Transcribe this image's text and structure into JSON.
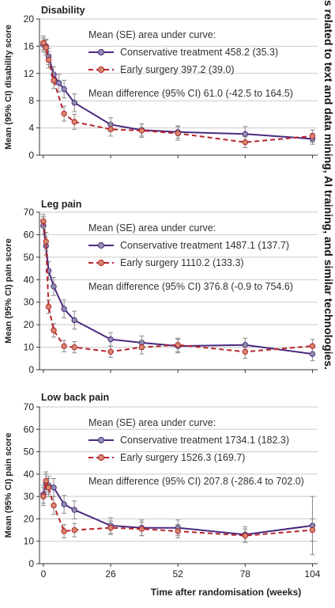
{
  "chart_data": [
    {
      "type": "line",
      "title": "Disability",
      "ylabel": "Mean (95% CI) disability score",
      "ylim": [
        0,
        20
      ],
      "yticks": [
        0,
        4,
        8,
        12,
        16,
        20
      ],
      "xlim": [
        -1.5,
        106
      ],
      "grid": "horizontal",
      "legend_header": "Mean (SE) area under curve:",
      "legend_footer": "Mean difference (95% CI) 61.0 (-42.5 to 164.5)",
      "series": [
        {
          "name": "Conservative treatment",
          "legend_label": "Conservative treatment 458.2 (35.3)",
          "color": "#4b2a7f",
          "style": "solid",
          "x": [
            0,
            1,
            2,
            4,
            6,
            8,
            12,
            26,
            38,
            52,
            78,
            104
          ],
          "y": [
            16.2,
            16.0,
            14.5,
            11.8,
            10.6,
            9.7,
            7.7,
            4.5,
            3.7,
            3.4,
            3.1,
            2.4
          ],
          "ci": [
            [
              15.2,
              17.2
            ],
            [
              15.0,
              17.0
            ],
            [
              13.3,
              15.7
            ],
            [
              10.6,
              13.0
            ],
            [
              9.3,
              11.9
            ],
            [
              8.4,
              11.0
            ],
            [
              6.4,
              9.0
            ],
            [
              3.5,
              5.5
            ],
            [
              2.8,
              4.6
            ],
            [
              2.5,
              4.3
            ],
            [
              2.0,
              4.2
            ],
            [
              1.6,
              3.2
            ]
          ]
        },
        {
          "name": "Early surgery",
          "legend_label": "Early surgery 397.2 (39.0)",
          "color": "#b8222b",
          "style": "dashed",
          "x": [
            0,
            1,
            2,
            4,
            8,
            12,
            26,
            38,
            52,
            78,
            104
          ],
          "y": [
            16.5,
            15.8,
            14.0,
            11.0,
            6.1,
            4.9,
            3.8,
            3.6,
            3.2,
            1.9,
            2.8
          ],
          "ci": [
            [
              15.5,
              17.5
            ],
            [
              14.7,
              16.9
            ],
            [
              12.8,
              15.2
            ],
            [
              9.8,
              12.2
            ],
            [
              5.0,
              7.2
            ],
            [
              3.8,
              6.0
            ],
            [
              2.8,
              4.8
            ],
            [
              2.6,
              4.6
            ],
            [
              2.2,
              4.2
            ],
            [
              1.1,
              2.7
            ],
            [
              1.9,
              3.7
            ]
          ]
        }
      ]
    },
    {
      "type": "line",
      "title": "Leg pain",
      "ylabel": "Mean (95% CI) pain score",
      "ylim": [
        0,
        70
      ],
      "yticks": [
        0,
        10,
        20,
        30,
        40,
        50,
        60,
        70
      ],
      "xlim": [
        -1.5,
        106
      ],
      "grid": "horizontal",
      "legend_header": "Mean (SE) area under curve:",
      "legend_footer": "Mean difference (95% CI) 376.8 (-0.9 to 754.6)",
      "series": [
        {
          "name": "Conservative treatment",
          "legend_label": "Conservative treatment 1487.1 (137.7)",
          "color": "#4b2a7f",
          "style": "solid",
          "x": [
            0,
            1,
            2,
            4,
            8,
            12,
            26,
            38,
            52,
            78,
            104
          ],
          "y": [
            64.0,
            55.0,
            44.0,
            37.0,
            27.0,
            22.0,
            13.5,
            12.0,
            10.5,
            11.0,
            7.0
          ],
          "ci": [
            [
              60.0,
              68.0
            ],
            [
              51.0,
              59.0
            ],
            [
              40.0,
              48.0
            ],
            [
              33.0,
              41.0
            ],
            [
              23.0,
              31.0
            ],
            [
              18.0,
              26.0
            ],
            [
              10.5,
              16.5
            ],
            [
              9.0,
              15.0
            ],
            [
              7.5,
              13.5
            ],
            [
              8.0,
              14.0
            ],
            [
              4.0,
              10.0
            ]
          ]
        },
        {
          "name": "Early surgery",
          "legend_label": "Early surgery 1110.2 (133.3)",
          "color": "#b8222b",
          "style": "dashed",
          "x": [
            0,
            1,
            2,
            4,
            8,
            12,
            26,
            38,
            52,
            78,
            104
          ],
          "y": [
            66.0,
            57.0,
            28.0,
            17.5,
            10.5,
            10.0,
            8.0,
            10.0,
            11.0,
            8.0,
            10.5
          ],
          "ci": [
            [
              63.0,
              69.0
            ],
            [
              53.0,
              61.0
            ],
            [
              25.0,
              31.0
            ],
            [
              14.5,
              20.5
            ],
            [
              8.0,
              13.0
            ],
            [
              7.5,
              12.5
            ],
            [
              5.5,
              10.5
            ],
            [
              7.0,
              13.0
            ],
            [
              8.0,
              14.0
            ],
            [
              5.0,
              11.0
            ],
            [
              7.5,
              13.5
            ]
          ]
        }
      ]
    },
    {
      "type": "line",
      "title": "Low back pain",
      "ylabel": "Mean (95% CI) pain score",
      "xlabel": "Time after randomisation (weeks)",
      "ylim": [
        0,
        70
      ],
      "yticks": [
        0,
        10,
        20,
        30,
        40,
        50,
        60,
        70
      ],
      "xticks": [
        0,
        26,
        52,
        78,
        104
      ],
      "xlim": [
        -1.5,
        106
      ],
      "grid": "horizontal",
      "legend_header": "Mean (SE) area under curve:",
      "legend_footer": "Mean difference (95% CI) 207.8 (-286.4 to 702.0)",
      "series": [
        {
          "name": "Conservative treatment",
          "legend_label": "Conservative treatment 1734.1 (182.3)",
          "color": "#4b2a7f",
          "style": "solid",
          "x": [
            0,
            1,
            2,
            4,
            8,
            12,
            26,
            38,
            52,
            78,
            104
          ],
          "y": [
            31.0,
            36.0,
            35.0,
            34.0,
            26.5,
            24.0,
            17.0,
            16.0,
            16.0,
            13.0,
            17.0
          ],
          "ci": [
            [
              27.0,
              35.0
            ],
            [
              32.0,
              40.0
            ],
            [
              31.0,
              39.0
            ],
            [
              30.0,
              38.0
            ],
            [
              22.5,
              30.5
            ],
            [
              20.0,
              28.0
            ],
            [
              13.5,
              20.5
            ],
            [
              12.5,
              19.5
            ],
            [
              12.5,
              19.5
            ],
            [
              9.5,
              16.5
            ],
            [
              4.0,
              30.0
            ]
          ]
        },
        {
          "name": "Early surgery",
          "legend_label": "Early surgery 1526.3 (169.7)",
          "color": "#b8222b",
          "style": "dashed",
          "x": [
            0,
            1,
            2,
            4,
            8,
            12,
            26,
            38,
            52,
            78,
            104
          ],
          "y": [
            30.0,
            37.0,
            34.0,
            26.0,
            14.5,
            15.0,
            16.0,
            15.5,
            14.5,
            12.5,
            15.0
          ],
          "ci": [
            [
              26.0,
              34.0
            ],
            [
              33.0,
              41.0
            ],
            [
              30.0,
              38.0
            ],
            [
              22.0,
              30.0
            ],
            [
              11.5,
              17.5
            ],
            [
              12.0,
              18.0
            ],
            [
              13.0,
              19.0
            ],
            [
              12.5,
              18.5
            ],
            [
              11.5,
              17.5
            ],
            [
              9.5,
              15.5
            ],
            [
              10.0,
              20.0
            ]
          ]
        }
      ]
    }
  ],
  "side_text": "s related to text and data mining, AI training, and similar technologies."
}
